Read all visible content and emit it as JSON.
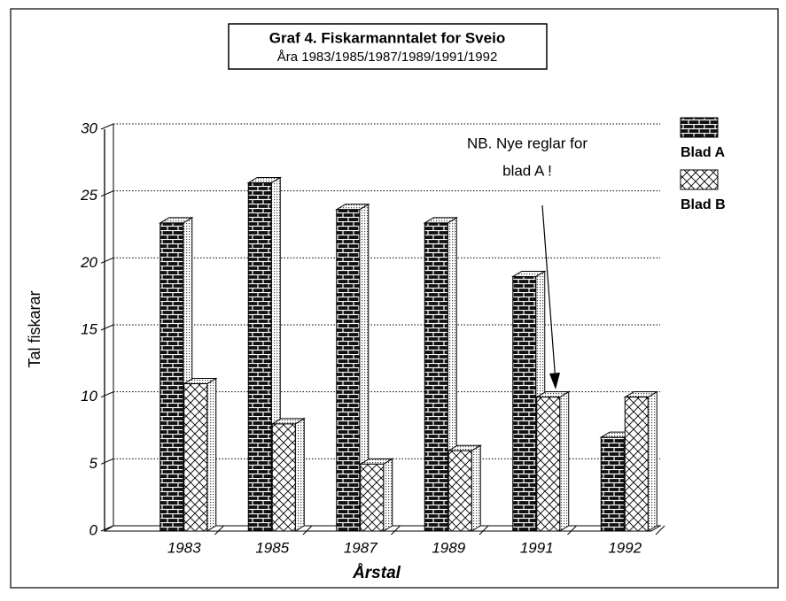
{
  "chart_data": {
    "type": "bar3d",
    "title": "Graf 4. Fiskarmanntalet for Sveio",
    "subtitle": "Åra 1983/1985/1987/1989/1991/1992",
    "y_label": "Tal fiskarar",
    "x_label": "Årstal",
    "annotation": [
      "NB. Nye reglar for",
      "blad A !"
    ],
    "categories": [
      "1983",
      "1985",
      "1987",
      "1989",
      "1991",
      "1992"
    ],
    "series": [
      {
        "name": "Blad A",
        "color": "#000000",
        "values": [
          23,
          26,
          24,
          23,
          19,
          7
        ]
      },
      {
        "name": "Blad B",
        "color": "#ffffff",
        "values": [
          11,
          8,
          5,
          6,
          10,
          10
        ]
      }
    ],
    "ylim": [
      0,
      30
    ],
    "yticks": [
      0,
      5,
      10,
      15,
      20,
      25,
      30
    ],
    "grid": true,
    "legend": "right"
  }
}
